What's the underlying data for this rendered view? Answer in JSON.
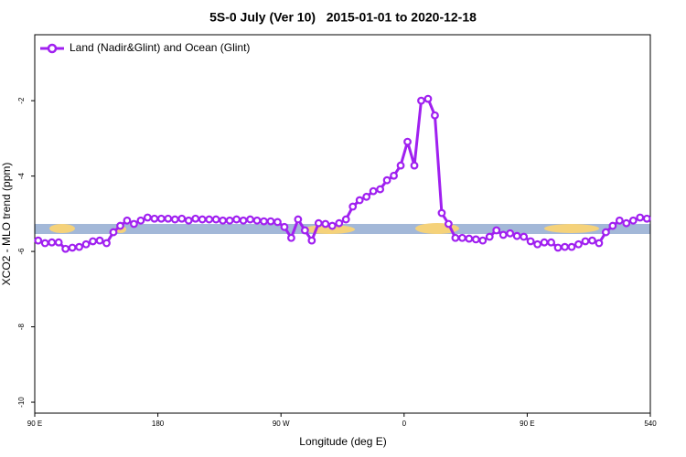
{
  "chart_data": {
    "type": "line",
    "title": "5S-0 July (Ver 10)   2015-01-01 to 2020-12-18",
    "xlabel": "Longitude (deg E)",
    "ylabel": "XCO2 - MLO trend (ppm)",
    "x": [
      92.5,
      97.5,
      102.5,
      107.5,
      112.5,
      117.5,
      122.5,
      127.5,
      132.5,
      137.5,
      142.5,
      147.5,
      152.5,
      157.5,
      162.5,
      167.5,
      172.5,
      177.5,
      182.5,
      187.5,
      192.5,
      197.5,
      202.5,
      207.5,
      212.5,
      217.5,
      222.5,
      227.5,
      232.5,
      237.5,
      242.5,
      247.5,
      252.5,
      257.5,
      262.5,
      267.5,
      272.5,
      277.5,
      282.5,
      287.5,
      292.5,
      297.5,
      302.5,
      307.5,
      312.5,
      317.5,
      322.5,
      327.5,
      332.5,
      337.5,
      342.5,
      347.5,
      352.5,
      357.5,
      362.5,
      367.5,
      372.5,
      377.5,
      382.5,
      387.5,
      392.5,
      397.5,
      402.5,
      407.5,
      412.5,
      417.5,
      422.5,
      427.5,
      432.5,
      437.5,
      442.5,
      447.5,
      452.5,
      457.5,
      462.5,
      467.5,
      472.5,
      477.5,
      482.5,
      487.5,
      492.5,
      497.5,
      502.5,
      507.5,
      512.5,
      517.5,
      522.5,
      527.5,
      532.5,
      537.5
    ],
    "series": [
      {
        "name": "Land (Nadir&Glint) and Ocean (Glint)",
        "color": "#a020f0",
        "values": [
          -5.71,
          -5.78,
          -5.76,
          -5.76,
          -5.93,
          -5.9,
          -5.88,
          -5.81,
          -5.73,
          -5.71,
          -5.78,
          -5.49,
          -5.32,
          -5.18,
          -5.27,
          -5.18,
          -5.1,
          -5.13,
          -5.13,
          -5.13,
          -5.15,
          -5.13,
          -5.18,
          -5.13,
          -5.15,
          -5.15,
          -5.15,
          -5.18,
          -5.18,
          -5.15,
          -5.18,
          -5.15,
          -5.18,
          -5.2,
          -5.2,
          -5.22,
          -5.35,
          -5.64,
          -5.15,
          -5.44,
          -5.71,
          -5.25,
          -5.27,
          -5.32,
          -5.25,
          -5.15,
          -4.81,
          -4.64,
          -4.55,
          -4.4,
          -4.35,
          -4.11,
          -3.99,
          -3.72,
          -3.09,
          -3.72,
          -2.0,
          -1.95,
          -2.39,
          -4.98,
          -5.27,
          -5.64,
          -5.64,
          -5.66,
          -5.68,
          -5.71,
          -5.61,
          -5.44,
          -5.56,
          -5.52,
          -5.59,
          -5.61,
          -5.73,
          -5.81,
          -5.76,
          -5.76,
          -5.9,
          -5.88,
          -5.88,
          -5.81,
          -5.73,
          -5.71,
          -5.78,
          -5.49,
          -5.32,
          -5.18,
          -5.25,
          -5.18,
          -5.1,
          -5.13
        ]
      }
    ],
    "xlim": [
      90,
      540
    ],
    "ylim": [
      -10.29,
      -0.25
    ],
    "xticks": [
      {
        "value": 90,
        "label": "90 E"
      },
      180,
      {
        "value": 270,
        "label": "90 W"
      },
      {
        "value": 360,
        "label": "0"
      },
      {
        "value": 450,
        "label": "90 E"
      },
      540
    ],
    "yticks": [
      -2,
      -4,
      -6,
      -8,
      -10
    ],
    "legend": "upper left"
  }
}
